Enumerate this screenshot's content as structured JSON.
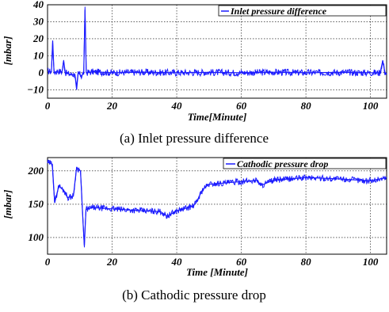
{
  "chart_data": [
    {
      "type": "line",
      "caption": "(a) Inlet pressure difference",
      "xlabel": "Time[Minute]",
      "ylabel": "[mbar]",
      "xlim": [
        0,
        105
      ],
      "ylim": [
        -15,
        40
      ],
      "xticks": [
        0,
        20,
        40,
        60,
        80,
        100
      ],
      "xtick_labels": [
        "0",
        "20",
        "40",
        "60",
        "80",
        "100"
      ],
      "yticks": [
        -10,
        0,
        10,
        20,
        30,
        40
      ],
      "ytick_labels": [
        "−10",
        "0",
        "10",
        "20",
        "30",
        "40"
      ],
      "grid": true,
      "legend_position": "top-right",
      "series": [
        {
          "name": "Inlet pressure difference",
          "color": "#1a1aff",
          "x": [
            0,
            1.2,
            1.6,
            2.0,
            3,
            4.5,
            5.0,
            5.5,
            7,
            8.5,
            9.0,
            9.5,
            10.5,
            11.2,
            11.6,
            12.0,
            14,
            20,
            30,
            40,
            50,
            60,
            70,
            80,
            90,
            100,
            103,
            103.8,
            104.5,
            105
          ],
          "y": [
            1,
            0.5,
            19,
            0,
            1,
            0.5,
            7,
            0,
            -1,
            -1,
            -10,
            0,
            -2,
            0,
            37,
            0,
            0.5,
            0,
            0.3,
            0,
            0.2,
            0,
            0.3,
            0,
            0.2,
            0,
            0,
            7,
            0,
            -0.5
          ]
        }
      ]
    },
    {
      "type": "line",
      "caption": "(b) Cathodic pressure drop",
      "xlabel": "Time [Minute]",
      "ylabel": "[mbar]",
      "xlim": [
        0,
        105
      ],
      "ylim": [
        75,
        220
      ],
      "xticks": [
        0,
        20,
        40,
        60,
        80,
        100
      ],
      "xtick_labels": [
        "0",
        "20",
        "40",
        "60",
        "80",
        "100"
      ],
      "yticks": [
        100,
        150,
        200
      ],
      "ytick_labels": [
        "100",
        "150",
        "200"
      ],
      "grid": true,
      "legend_position": "top-right",
      "series": [
        {
          "name": "Cathodic pressure drop",
          "color": "#1a1aff",
          "x": [
            0,
            1.5,
            2.2,
            3.5,
            5.5,
            6.2,
            8,
            9.0,
            10.2,
            11.0,
            11.4,
            11.9,
            14,
            20,
            30,
            35,
            37,
            40,
            45,
            46,
            48,
            50,
            60,
            65,
            66,
            70,
            80,
            90,
            100,
            105
          ],
          "y": [
            213,
            210,
            152,
            178,
            168,
            160,
            162,
            205,
            200,
            122,
            88,
            142,
            145,
            143,
            140,
            139,
            132,
            140,
            147,
            152,
            172,
            180,
            184,
            186,
            178,
            186,
            190,
            188,
            185,
            190
          ]
        }
      ]
    }
  ]
}
